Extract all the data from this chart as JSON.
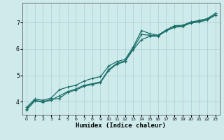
{
  "xlabel": "Humidex (Indice chaleur)",
  "bg_color": "#ceeaea",
  "grid_color": "#aad0d0",
  "line_color": "#1a6e6a",
  "xlim": [
    -0.5,
    23.5
  ],
  "ylim": [
    3.5,
    7.75
  ],
  "yticks": [
    4,
    5,
    6,
    7
  ],
  "xticks": [
    0,
    1,
    2,
    3,
    4,
    5,
    6,
    7,
    8,
    9,
    10,
    11,
    12,
    13,
    14,
    15,
    16,
    17,
    18,
    19,
    20,
    21,
    22,
    23
  ],
  "line1_x": [
    0,
    1,
    2,
    3,
    4,
    5,
    6,
    7,
    8,
    9,
    10,
    11,
    12,
    13,
    14,
    15,
    16,
    17,
    18,
    19,
    20,
    21,
    22,
    23
  ],
  "line1_y": [
    3.72,
    4.05,
    4.0,
    4.08,
    4.12,
    4.35,
    4.44,
    4.58,
    4.65,
    4.72,
    5.18,
    5.42,
    5.52,
    5.98,
    6.35,
    6.48,
    6.48,
    6.68,
    6.82,
    6.85,
    6.98,
    7.02,
    7.1,
    7.28
  ],
  "line2_x": [
    0,
    1,
    2,
    3,
    4,
    5,
    6,
    7,
    8,
    9,
    10,
    11,
    12,
    13,
    14,
    15,
    16,
    17,
    18,
    19,
    20,
    21,
    22,
    23
  ],
  "line2_y": [
    3.78,
    4.1,
    4.05,
    4.14,
    4.45,
    4.55,
    4.62,
    4.78,
    4.88,
    4.95,
    5.35,
    5.52,
    5.6,
    6.08,
    6.7,
    6.58,
    6.52,
    6.72,
    6.88,
    6.9,
    7.02,
    7.08,
    7.15,
    7.35
  ],
  "line3_x": [
    0,
    1,
    2,
    3,
    4,
    5,
    6,
    7,
    8,
    9,
    10,
    11,
    12,
    13,
    14,
    15,
    16,
    17,
    18,
    19,
    20,
    21,
    22,
    23
  ],
  "line3_y": [
    3.68,
    4.02,
    3.98,
    4.06,
    4.22,
    4.38,
    4.48,
    4.62,
    4.68,
    4.75,
    5.22,
    5.45,
    5.55,
    6.02,
    6.55,
    6.52,
    6.5,
    6.7,
    6.84,
    6.87,
    7.0,
    7.05,
    7.12,
    7.3
  ]
}
